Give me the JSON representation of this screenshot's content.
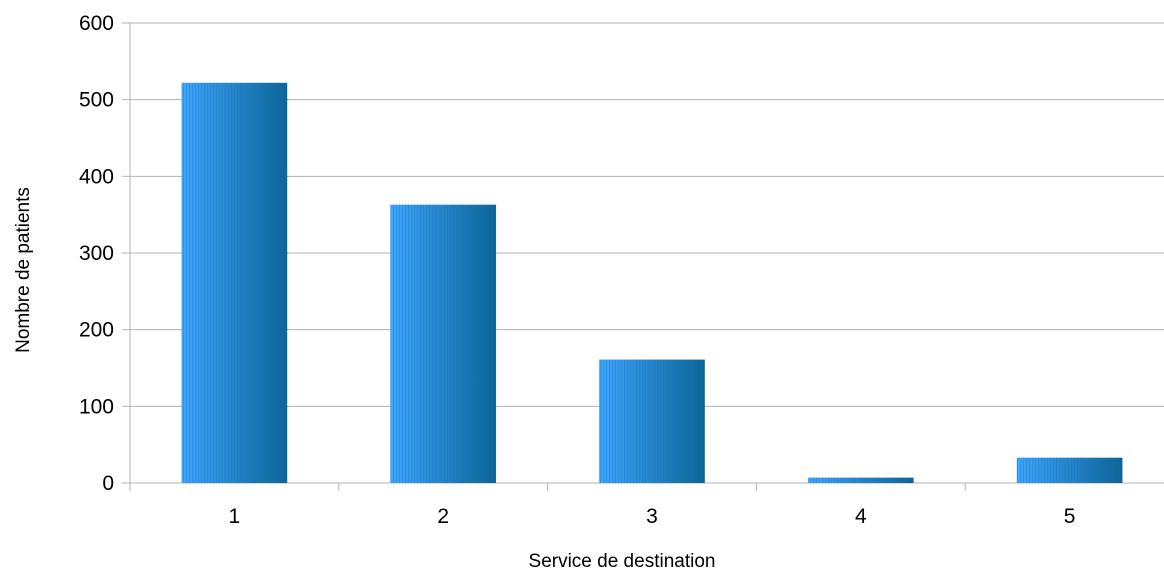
{
  "chart_data": {
    "type": "bar",
    "title": "",
    "xlabel": "Service de destination",
    "ylabel": "Nombre de patients",
    "categories": [
      "1",
      "2",
      "3",
      "4",
      "5"
    ],
    "values": [
      522,
      363,
      161,
      7,
      33
    ],
    "ylim": [
      0,
      600
    ],
    "yticks": [
      0,
      100,
      200,
      300,
      400,
      500,
      600
    ],
    "yticks_labels": [
      "0",
      "100",
      "200",
      "300",
      "400",
      "500",
      "600"
    ],
    "grid": true,
    "legend": "none",
    "colors": {
      "bar_light": "#3ea6ff",
      "bar_dark": "#0a6496",
      "stripe": "#1f6fae",
      "grid": "#b3b3b3"
    }
  }
}
